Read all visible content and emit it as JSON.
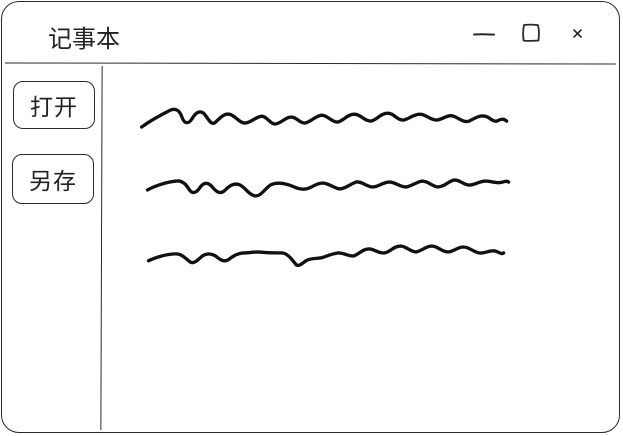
{
  "window": {
    "title": "记事本"
  },
  "titlebar_buttons": {
    "minimize_icon": "minimize-icon",
    "maximize_icon": "maximize-icon",
    "close_icon": "close-icon",
    "close_glyph": "×"
  },
  "sidebar": {
    "open_label": "打开",
    "save_as_label": "另存"
  },
  "editor": {
    "content_lines": 3
  },
  "colors": {
    "stroke": "#2a2a2a",
    "background": "#ffffff",
    "ink": "#111111"
  }
}
